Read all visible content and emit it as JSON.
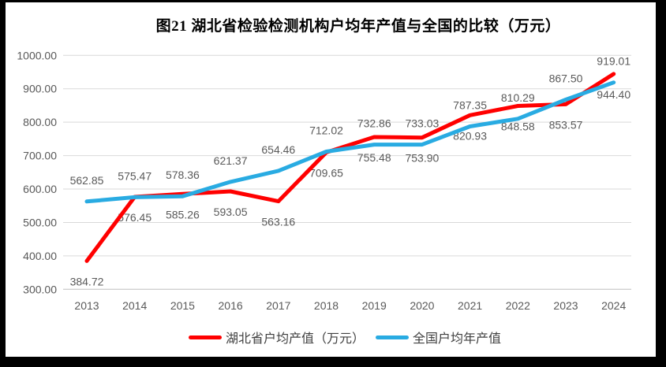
{
  "chart_data": {
    "type": "line",
    "title": "图21  湖北省检验检测机构户均年产值与全国的比较（万元）",
    "categories": [
      "2013",
      "2014",
      "2015",
      "2016",
      "2017",
      "2018",
      "2019",
      "2020",
      "2021",
      "2022",
      "2023",
      "2024"
    ],
    "series": [
      {
        "name": "湖北省户均产值（万元）",
        "color": "#FF0000",
        "label_position": "below",
        "values": [
          384.72,
          576.45,
          585.26,
          593.05,
          563.16,
          709.65,
          755.48,
          753.9,
          820.93,
          848.58,
          853.57,
          944.4
        ]
      },
      {
        "name": "全国户均年产值",
        "color": "#29ABE2",
        "label_position": "above",
        "values": [
          562.85,
          575.47,
          578.36,
          621.37,
          654.46,
          712.02,
          732.86,
          733.03,
          787.35,
          810.29,
          867.5,
          919.01
        ]
      }
    ],
    "xlabel": "",
    "ylabel": "",
    "ylim": [
      300,
      1000
    ],
    "y_tick_step": 100,
    "y_ticks": [
      "300.00",
      "400.00",
      "500.00",
      "600.00",
      "700.00",
      "800.00",
      "900.00",
      "1000.00"
    ],
    "grid": true,
    "legend_position": "bottom",
    "data_label_format": "2dp"
  },
  "colors": {
    "gridline": "#D9D9D9",
    "axis_line": "#BFBFBF",
    "tick_text": "#595959",
    "data_label_text": "#595959",
    "title_text": "#000000",
    "legend_text": "#404040",
    "frame": "#000000",
    "background": "#FFFFFF"
  }
}
